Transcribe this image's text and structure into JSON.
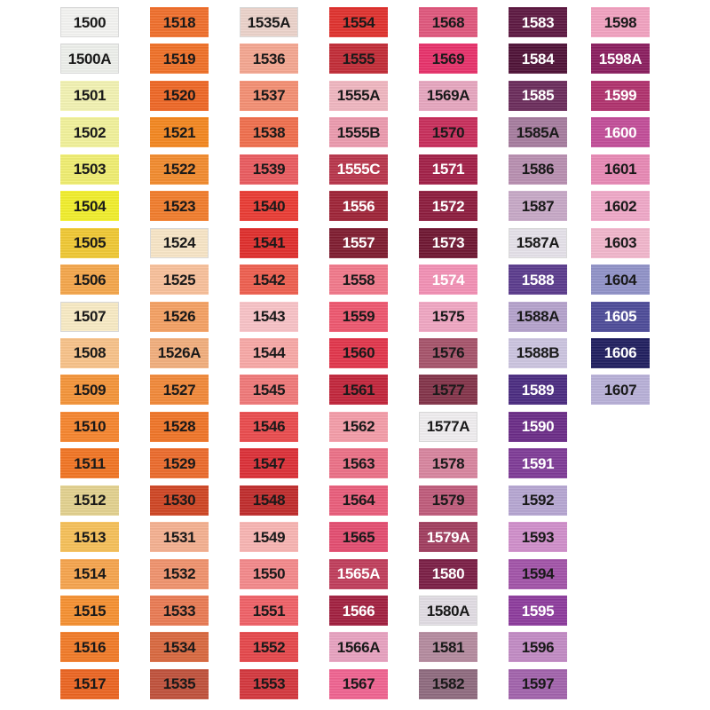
{
  "columns": [
    [
      {
        "code": "1500",
        "color": "#f4f4f2",
        "text": "dark"
      },
      {
        "code": "1500A",
        "color": "#eef0ec",
        "text": "dark"
      },
      {
        "code": "1501",
        "color": "#f3f3b2",
        "text": "dark"
      },
      {
        "code": "1502",
        "color": "#f2f29a",
        "text": "dark"
      },
      {
        "code": "1503",
        "color": "#f0ee70",
        "text": "dark"
      },
      {
        "code": "1504",
        "color": "#f2ef2a",
        "text": "dark"
      },
      {
        "code": "1505",
        "color": "#f0c832",
        "text": "dark"
      },
      {
        "code": "1506",
        "color": "#f5a64a",
        "text": "dark"
      },
      {
        "code": "1507",
        "color": "#f9ebc4",
        "text": "dark"
      },
      {
        "code": "1508",
        "color": "#f8c289",
        "text": "dark"
      },
      {
        "code": "1509",
        "color": "#f59438",
        "text": "dark"
      },
      {
        "code": "1510",
        "color": "#f6842c",
        "text": "dark"
      },
      {
        "code": "1511",
        "color": "#f27422",
        "text": "dark"
      },
      {
        "code": "1512",
        "color": "#e3d18e",
        "text": "dark"
      },
      {
        "code": "1513",
        "color": "#f6c058",
        "text": "dark"
      },
      {
        "code": "1514",
        "color": "#f6a44c",
        "text": "dark"
      },
      {
        "code": "1515",
        "color": "#f69030",
        "text": "dark"
      },
      {
        "code": "1516",
        "color": "#f27a26",
        "text": "dark"
      },
      {
        "code": "1517",
        "color": "#ec6420",
        "text": "dark"
      }
    ],
    [
      {
        "code": "1518",
        "color": "#f06e2a",
        "text": "dark"
      },
      {
        "code": "1519",
        "color": "#f17026",
        "text": "dark"
      },
      {
        "code": "1520",
        "color": "#ef6624",
        "text": "dark"
      },
      {
        "code": "1521",
        "color": "#f4861e",
        "text": "dark"
      },
      {
        "code": "1522",
        "color": "#f38a2c",
        "text": "dark"
      },
      {
        "code": "1523",
        "color": "#f27c2a",
        "text": "dark"
      },
      {
        "code": "1524",
        "color": "#f8e6c6",
        "text": "dark"
      },
      {
        "code": "1525",
        "color": "#f9c09a",
        "text": "dark"
      },
      {
        "code": "1526",
        "color": "#f5a062",
        "text": "dark"
      },
      {
        "code": "1526A",
        "color": "#f2ae7c",
        "text": "dark"
      },
      {
        "code": "1527",
        "color": "#f28838",
        "text": "dark"
      },
      {
        "code": "1528",
        "color": "#f07426",
        "text": "dark"
      },
      {
        "code": "1529",
        "color": "#ec6a2a",
        "text": "dark"
      },
      {
        "code": "1530",
        "color": "#cf4422",
        "text": "dark"
      },
      {
        "code": "1531",
        "color": "#f5b090",
        "text": "dark"
      },
      {
        "code": "1532",
        "color": "#f0926c",
        "text": "dark"
      },
      {
        "code": "1533",
        "color": "#ea7a52",
        "text": "dark"
      },
      {
        "code": "1534",
        "color": "#d9683e",
        "text": "dark"
      },
      {
        "code": "1535",
        "color": "#c0503a",
        "text": "dark"
      }
    ],
    [
      {
        "code": "1535A",
        "color": "#ecd3cb",
        "text": "dark"
      },
      {
        "code": "1536",
        "color": "#f5a690",
        "text": "dark"
      },
      {
        "code": "1537",
        "color": "#f48e72",
        "text": "dark"
      },
      {
        "code": "1538",
        "color": "#f16e4c",
        "text": "dark"
      },
      {
        "code": "1539",
        "color": "#ea5a5e",
        "text": "dark"
      },
      {
        "code": "1540",
        "color": "#ea3a32",
        "text": "dark"
      },
      {
        "code": "1541",
        "color": "#e02c2a",
        "text": "dark"
      },
      {
        "code": "1542",
        "color": "#ef5e4e",
        "text": "dark"
      },
      {
        "code": "1543",
        "color": "#f8c2c6",
        "text": "dark"
      },
      {
        "code": "1544",
        "color": "#f8a8a6",
        "text": "dark"
      },
      {
        "code": "1545",
        "color": "#f17878",
        "text": "dark"
      },
      {
        "code": "1546",
        "color": "#ea4a4c",
        "text": "dark"
      },
      {
        "code": "1547",
        "color": "#dc2e36",
        "text": "dark"
      },
      {
        "code": "1548",
        "color": "#c02a2a",
        "text": "dark"
      },
      {
        "code": "1549",
        "color": "#f8b4b2",
        "text": "dark"
      },
      {
        "code": "1550",
        "color": "#f4888a",
        "text": "dark"
      },
      {
        "code": "1551",
        "color": "#f06066",
        "text": "dark"
      },
      {
        "code": "1552",
        "color": "#e6464a",
        "text": "dark"
      },
      {
        "code": "1553",
        "color": "#d4363c",
        "text": "dark"
      }
    ],
    [
      {
        "code": "1554",
        "color": "#e0302c",
        "text": "dark"
      },
      {
        "code": "1555",
        "color": "#c22a36",
        "text": "dark"
      },
      {
        "code": "1555A",
        "color": "#f0b6c0",
        "text": "dark"
      },
      {
        "code": "1555B",
        "color": "#ec9aae",
        "text": "dark"
      },
      {
        "code": "1555C",
        "color": "#b8344a",
        "text": "light"
      },
      {
        "code": "1556",
        "color": "#9e2236",
        "text": "light"
      },
      {
        "code": "1557",
        "color": "#7e1a2e",
        "text": "light"
      },
      {
        "code": "1558",
        "color": "#f2788a",
        "text": "dark"
      },
      {
        "code": "1559",
        "color": "#ee566e",
        "text": "dark"
      },
      {
        "code": "1560",
        "color": "#e2344a",
        "text": "dark"
      },
      {
        "code": "1561",
        "color": "#c2243a",
        "text": "dark"
      },
      {
        "code": "1562",
        "color": "#f49ca8",
        "text": "dark"
      },
      {
        "code": "1563",
        "color": "#ec7086",
        "text": "dark"
      },
      {
        "code": "1564",
        "color": "#ea5c7a",
        "text": "dark"
      },
      {
        "code": "1565",
        "color": "#e44c70",
        "text": "dark"
      },
      {
        "code": "1565A",
        "color": "#c03c5a",
        "text": "light"
      },
      {
        "code": "1566",
        "color": "#a21e3e",
        "text": "light"
      },
      {
        "code": "1566A",
        "color": "#e8a2c0",
        "text": "dark"
      },
      {
        "code": "1567",
        "color": "#f06290",
        "text": "dark"
      }
    ],
    [
      {
        "code": "1568",
        "color": "#e0567c",
        "text": "dark"
      },
      {
        "code": "1569",
        "color": "#e8306a",
        "text": "dark"
      },
      {
        "code": "1569A",
        "color": "#e7a6bf",
        "text": "dark"
      },
      {
        "code": "1570",
        "color": "#c82c5a",
        "text": "dark"
      },
      {
        "code": "1571",
        "color": "#a21e46",
        "text": "light"
      },
      {
        "code": "1572",
        "color": "#8c1a3c",
        "text": "light"
      },
      {
        "code": "1573",
        "color": "#6e1430",
        "text": "light"
      },
      {
        "code": "1574",
        "color": "#f390b4",
        "text": "light"
      },
      {
        "code": "1575",
        "color": "#f0a6c2",
        "text": "dark"
      },
      {
        "code": "1576",
        "color": "#a6526a",
        "text": "dark"
      },
      {
        "code": "1577",
        "color": "#823248",
        "text": "dark"
      },
      {
        "code": "1577A",
        "color": "#f1eef0",
        "text": "dark"
      },
      {
        "code": "1578",
        "color": "#d8849e",
        "text": "dark"
      },
      {
        "code": "1579",
        "color": "#bf5a7a",
        "text": "dark"
      },
      {
        "code": "1579A",
        "color": "#a03c5e",
        "text": "light"
      },
      {
        "code": "1580",
        "color": "#7a1c44",
        "text": "light"
      },
      {
        "code": "1580A",
        "color": "#e2dde4",
        "text": "dark"
      },
      {
        "code": "1581",
        "color": "#b48a9e",
        "text": "dark"
      },
      {
        "code": "1582",
        "color": "#8e6a7e",
        "text": "dark"
      }
    ],
    [
      {
        "code": "1583",
        "color": "#5c1640",
        "text": "light"
      },
      {
        "code": "1584",
        "color": "#4e1036",
        "text": "light"
      },
      {
        "code": "1585",
        "color": "#6a2a5a",
        "text": "light"
      },
      {
        "code": "1585A",
        "color": "#a67c9e",
        "text": "dark"
      },
      {
        "code": "1586",
        "color": "#b88eb0",
        "text": "dark"
      },
      {
        "code": "1587",
        "color": "#c7a8c6",
        "text": "dark"
      },
      {
        "code": "1587A",
        "color": "#e6e2ea",
        "text": "dark"
      },
      {
        "code": "1588",
        "color": "#5a3a8c",
        "text": "light"
      },
      {
        "code": "1588A",
        "color": "#b4a2cc",
        "text": "dark"
      },
      {
        "code": "1588B",
        "color": "#ccc4e0",
        "text": "dark"
      },
      {
        "code": "1589",
        "color": "#4a2a80",
        "text": "light"
      },
      {
        "code": "1590",
        "color": "#6a2a86",
        "text": "light"
      },
      {
        "code": "1591",
        "color": "#7e3a96",
        "text": "light"
      },
      {
        "code": "1592",
        "color": "#b6a6d2",
        "text": "dark"
      },
      {
        "code": "1593",
        "color": "#d08ecb",
        "text": "dark"
      },
      {
        "code": "1594",
        "color": "#a252a8",
        "text": "dark"
      },
      {
        "code": "1595",
        "color": "#8c3a9c",
        "text": "light"
      },
      {
        "code": "1596",
        "color": "#c28ac4",
        "text": "dark"
      },
      {
        "code": "1597",
        "color": "#a262ac",
        "text": "dark"
      }
    ],
    [
      {
        "code": "1598",
        "color": "#f2a2c0",
        "text": "dark"
      },
      {
        "code": "1598A",
        "color": "#8a1c5e",
        "text": "light"
      },
      {
        "code": "1599",
        "color": "#b0306c",
        "text": "light"
      },
      {
        "code": "1600",
        "color": "#c24c98",
        "text": "light"
      },
      {
        "code": "1601",
        "color": "#e888b4",
        "text": "dark"
      },
      {
        "code": "1602",
        "color": "#f0a8c8",
        "text": "dark"
      },
      {
        "code": "1603",
        "color": "#f2b6cc",
        "text": "dark"
      },
      {
        "code": "1604",
        "color": "#9092c8",
        "text": "dark"
      },
      {
        "code": "1605",
        "color": "#4c4a98",
        "text": "light"
      },
      {
        "code": "1606",
        "color": "#1e1c5e",
        "text": "light"
      },
      {
        "code": "1607",
        "color": "#b8b0d8",
        "text": "dark"
      }
    ]
  ]
}
